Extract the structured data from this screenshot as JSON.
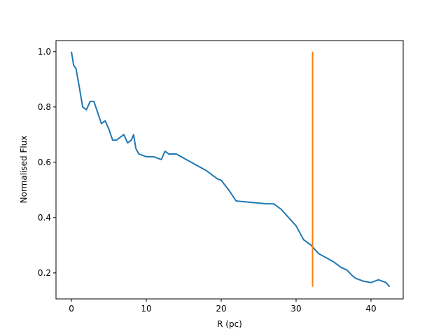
{
  "chart_data": {
    "type": "line",
    "xlabel": "R (pc)",
    "ylabel": "Normalised Flux",
    "xlim": [
      -2.06,
      44.3
    ],
    "ylim": [
      0.106,
      1.04
    ],
    "xticks": [
      0,
      10,
      20,
      30,
      40
    ],
    "yticks": [
      0.2,
      0.4,
      0.6,
      0.8,
      {
        "value": 1.0,
        "label": "1.0"
      }
    ],
    "series": [
      {
        "color": "#1f77b4",
        "x": [
          0,
          0.3,
          0.6,
          1,
          1.5,
          2,
          2.5,
          3,
          3.5,
          4,
          4.5,
          5,
          5.5,
          6,
          7,
          7.5,
          8,
          8.3,
          8.6,
          9,
          10,
          11,
          12,
          12.5,
          13,
          14,
          16,
          18,
          19.5,
          20,
          21,
          22,
          24,
          26,
          27,
          28,
          30,
          31,
          32,
          33,
          35,
          36,
          36.8,
          37.5,
          38,
          39,
          40,
          41,
          42,
          42.5
        ],
        "values": [
          1.0,
          0.95,
          0.94,
          0.88,
          0.8,
          0.79,
          0.82,
          0.82,
          0.78,
          0.74,
          0.75,
          0.72,
          0.68,
          0.68,
          0.7,
          0.67,
          0.68,
          0.7,
          0.65,
          0.63,
          0.62,
          0.62,
          0.61,
          0.64,
          0.63,
          0.63,
          0.6,
          0.57,
          0.54,
          0.535,
          0.5,
          0.46,
          0.455,
          0.45,
          0.45,
          0.43,
          0.37,
          0.32,
          0.3,
          0.27,
          0.24,
          0.22,
          0.21,
          0.19,
          0.18,
          0.17,
          0.165,
          0.175,
          0.165,
          0.15
        ]
      },
      {
        "color": "#ff7f0e",
        "x": [
          32.2,
          32.2
        ],
        "values": [
          0.15,
          1.0
        ]
      }
    ]
  }
}
